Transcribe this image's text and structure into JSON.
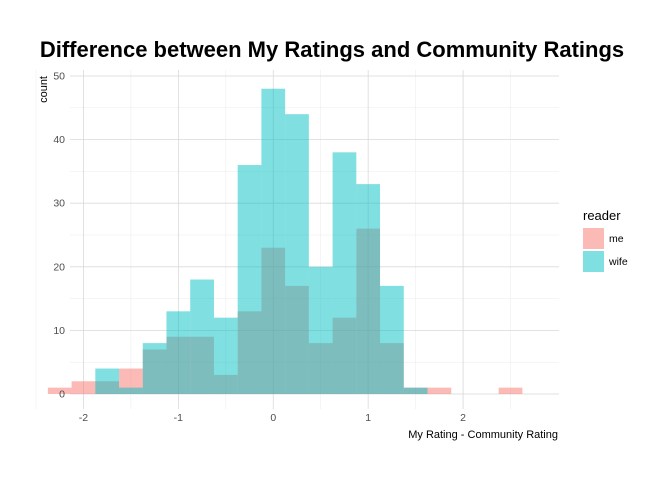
{
  "chart_data": {
    "type": "histogram",
    "title": "Difference between My Ratings and Community Ratings",
    "xlabel": "My Rating - Community Rating",
    "ylabel": "count",
    "xlim": [
      -2.5,
      2.8
    ],
    "ylim": [
      0,
      50
    ],
    "x_ticks": [
      -2,
      -1,
      0,
      1,
      2
    ],
    "x_tick_labels": [
      "-2",
      "-1",
      "0",
      "1",
      "2"
    ],
    "y_ticks": [
      0,
      10,
      20,
      30,
      40,
      50
    ],
    "y_tick_labels": [
      "0",
      "10",
      "20",
      "30",
      "40",
      "50"
    ],
    "bin_width": 0.25,
    "bin_centers": [
      -2.25,
      -2.0,
      -1.75,
      -1.5,
      -1.25,
      -1.0,
      -0.75,
      -0.5,
      -0.25,
      0.0,
      0.25,
      0.5,
      0.75,
      1.0,
      1.25,
      1.5,
      1.75,
      2.0,
      2.25,
      2.5
    ],
    "series": [
      {
        "name": "me",
        "color": "#F8766D",
        "values": [
          1,
          2,
          2,
          4,
          7,
          9,
          9,
          3,
          13,
          23,
          17,
          8,
          12,
          26,
          8,
          1,
          1,
          0,
          0,
          1
        ]
      },
      {
        "name": "wife",
        "color": "#00BFC4",
        "values": [
          0,
          0,
          4,
          1,
          8,
          13,
          18,
          12,
          36,
          48,
          44,
          20,
          38,
          33,
          17,
          1,
          0,
          0,
          0,
          0
        ]
      }
    ],
    "alpha": 0.5,
    "grid": true,
    "legend": {
      "title": "reader",
      "position": "right",
      "entries": [
        "me",
        "wife"
      ]
    }
  }
}
